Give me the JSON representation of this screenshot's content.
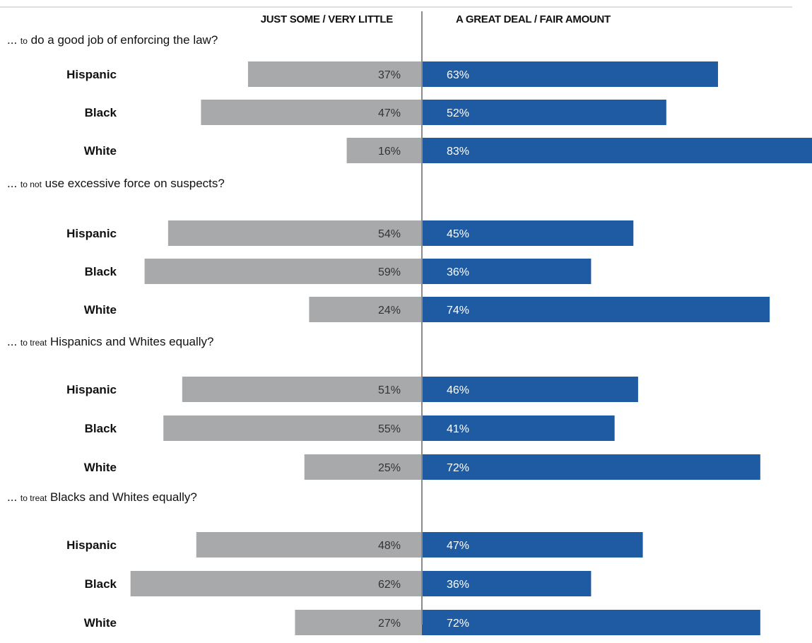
{
  "chart_data": {
    "type": "bar",
    "orientation": "horizontal-diverging",
    "left_header": "JUST SOME / VERY LITTLE",
    "right_header": "A GREAT DEAL / FAIR AMOUNT",
    "colors": {
      "left": "#a8a9ab",
      "right": "#1f5ba3",
      "axis": "#8a8a8a"
    },
    "xlim": [
      0,
      83
    ],
    "questions": [
      {
        "prefix": "... ",
        "small": "to",
        "text": " do a good job of enforcing the law?",
        "groups": [
          {
            "label": "Hispanic",
            "left": 37,
            "left_label": "37%",
            "right": 63,
            "right_label": "63%"
          },
          {
            "label": "Black",
            "left": 47,
            "left_label": "47%",
            "right": 52,
            "right_label": "52%"
          },
          {
            "label": "White",
            "left": 16,
            "left_label": "16%",
            "right": 83,
            "right_label": "83%"
          }
        ]
      },
      {
        "prefix": "... ",
        "small": "to not",
        "text": " use excessive force on suspects?",
        "groups": [
          {
            "label": "Hispanic",
            "left": 54,
            "left_label": "54%",
            "right": 45,
            "right_label": "45%"
          },
          {
            "label": "Black",
            "left": 59,
            "left_label": "59%",
            "right": 36,
            "right_label": "36%"
          },
          {
            "label": "White",
            "left": 24,
            "left_label": "24%",
            "right": 74,
            "right_label": "74%"
          }
        ]
      },
      {
        "prefix": "... ",
        "small": "to treat",
        "text": " Hispanics and Whites equally?",
        "groups": [
          {
            "label": "Hispanic",
            "left": 51,
            "left_label": "51%",
            "right": 46,
            "right_label": "46%"
          },
          {
            "label": "Black",
            "left": 55,
            "left_label": "55%",
            "right": 41,
            "right_label": "41%"
          },
          {
            "label": "White",
            "left": 25,
            "left_label": "25%",
            "right": 72,
            "right_label": "72%"
          }
        ]
      },
      {
        "prefix": "... ",
        "small": "to treat",
        "text": " Blacks and Whites equally?",
        "groups": [
          {
            "label": "Hispanic",
            "left": 48,
            "left_label": "48%",
            "right": 47,
            "right_label": "47%"
          },
          {
            "label": "Black",
            "left": 62,
            "left_label": "62%",
            "right": 36,
            "right_label": "36%"
          },
          {
            "label": "White",
            "left": 27,
            "left_label": "27%",
            "right": 72,
            "right_label": "72%"
          }
        ]
      }
    ]
  }
}
